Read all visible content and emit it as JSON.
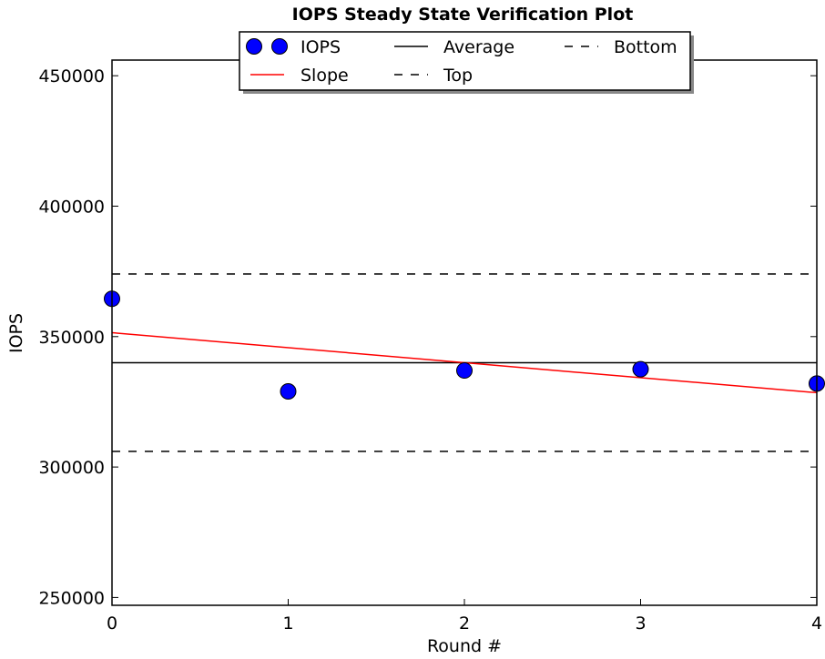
{
  "chart_data": {
    "type": "scatter",
    "title": "IOPS Steady State Verification Plot",
    "xlabel": "Round #",
    "ylabel": "IOPS",
    "xlim": [
      0,
      4
    ],
    "ylim": [
      247000,
      456000
    ],
    "x_ticks": [
      0,
      1,
      2,
      3,
      4
    ],
    "y_ticks": [
      250000,
      300000,
      350000,
      400000,
      450000
    ],
    "grid": false,
    "legend_position": "top-center",
    "series": [
      {
        "name": "IOPS",
        "kind": "markers",
        "color": "#0000ff",
        "x": [
          0,
          1,
          2,
          3,
          4
        ],
        "values": [
          364500,
          329000,
          337000,
          337500,
          332000
        ]
      },
      {
        "name": "Slope",
        "kind": "line",
        "color": "#ff0000",
        "x": [
          0,
          4
        ],
        "values": [
          351500,
          328500
        ]
      },
      {
        "name": "Average",
        "kind": "hline",
        "color": "#000000",
        "value": 340000
      },
      {
        "name": "Top",
        "kind": "hline-dashed",
        "color": "#000000",
        "value": 374000
      },
      {
        "name": "Bottom",
        "kind": "hline-dashed",
        "color": "#000000",
        "value": 306000
      }
    ],
    "legend": [
      {
        "label": "IOPS"
      },
      {
        "label": "Slope"
      },
      {
        "label": "Average"
      },
      {
        "label": "Top"
      },
      {
        "label": "Bottom"
      }
    ]
  }
}
